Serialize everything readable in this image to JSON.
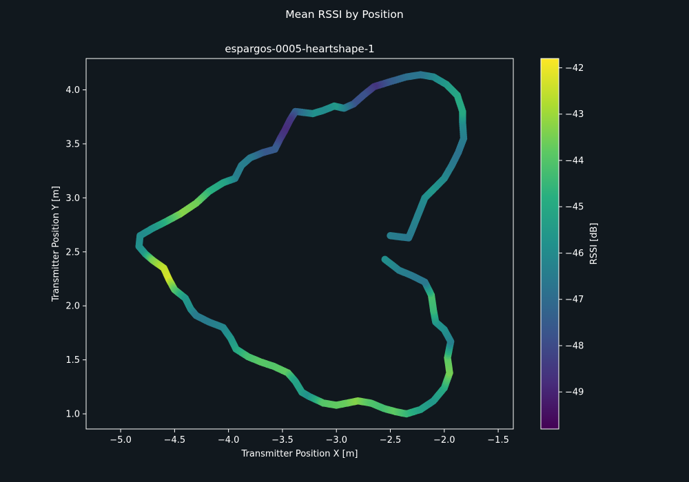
{
  "figure": {
    "title": "Mean RSSI by Position",
    "background": "#11181e"
  },
  "chart_data": {
    "type": "scatter",
    "subtitle": "espargos-0005-heartshape-1",
    "xlabel": "Transmitter Position X [m]",
    "ylabel": "Transmitter Position Y [m]",
    "xlim": [
      -5.32,
      -1.36
    ],
    "ylim": [
      0.86,
      4.29
    ],
    "xticks": [
      -5.0,
      -4.5,
      -4.0,
      -3.5,
      -3.0,
      -2.5,
      -2.0,
      -1.5
    ],
    "xtick_labels": [
      "−5.0",
      "−4.5",
      "−4.0",
      "−3.5",
      "−3.0",
      "−2.5",
      "−2.0",
      "−1.5"
    ],
    "yticks": [
      1.0,
      1.5,
      2.0,
      2.5,
      3.0,
      3.5,
      4.0
    ],
    "ytick_labels": [
      "1.0",
      "1.5",
      "2.0",
      "2.5",
      "3.0",
      "3.5",
      "4.0"
    ],
    "grid": false,
    "colormap": "viridis",
    "colorbar": {
      "label": "RSSI [dB]",
      "range": [
        -49.8,
        -41.8
      ],
      "ticks": [
        -42,
        -43,
        -44,
        -45,
        -46,
        -47,
        -48,
        -49
      ],
      "tick_labels": [
        "−42",
        "−43",
        "−44",
        "−45",
        "−46",
        "−47",
        "−48",
        "−49"
      ]
    },
    "points": [
      [
        -2.5,
        2.65,
        -46.4
      ],
      [
        -2.42,
        2.64,
        -46.5
      ],
      [
        -2.33,
        2.63,
        -46.6
      ],
      [
        -2.3,
        2.7,
        -46.5
      ],
      [
        -2.26,
        2.8,
        -46.3
      ],
      [
        -2.22,
        2.9,
        -46.3
      ],
      [
        -2.18,
        3.0,
        -46.0
      ],
      [
        -2.1,
        3.08,
        -45.6
      ],
      [
        -2.0,
        3.18,
        -46.0
      ],
      [
        -1.93,
        3.3,
        -46.5
      ],
      [
        -1.87,
        3.42,
        -46.8
      ],
      [
        -1.82,
        3.55,
        -46.5
      ],
      [
        -1.83,
        3.7,
        -46.0
      ],
      [
        -1.83,
        3.8,
        -45.0
      ],
      [
        -1.88,
        3.95,
        -45.0
      ],
      [
        -1.98,
        4.05,
        -45.4
      ],
      [
        -2.1,
        4.12,
        -46.0
      ],
      [
        -2.22,
        4.14,
        -46.7
      ],
      [
        -2.35,
        4.12,
        -46.8
      ],
      [
        -2.52,
        4.07,
        -47.5
      ],
      [
        -2.65,
        4.03,
        -48.6
      ],
      [
        -2.75,
        3.95,
        -47.8
      ],
      [
        -2.84,
        3.87,
        -47.8
      ],
      [
        -2.93,
        3.83,
        -46.5
      ],
      [
        -3.02,
        3.85,
        -45.5
      ],
      [
        -3.12,
        3.81,
        -46.0
      ],
      [
        -3.22,
        3.78,
        -45.8
      ],
      [
        -3.38,
        3.8,
        -47.2
      ],
      [
        -3.43,
        3.72,
        -48.5
      ],
      [
        -3.48,
        3.62,
        -48.8
      ],
      [
        -3.52,
        3.55,
        -48.5
      ],
      [
        -3.57,
        3.45,
        -47.5
      ],
      [
        -3.68,
        3.42,
        -47.6
      ],
      [
        -3.8,
        3.37,
        -46.6
      ],
      [
        -3.88,
        3.3,
        -46.4
      ],
      [
        -3.94,
        3.18,
        -46.4
      ],
      [
        -4.05,
        3.14,
        -45.2
      ],
      [
        -4.18,
        3.06,
        -44.8
      ],
      [
        -4.3,
        2.95,
        -43.6
      ],
      [
        -4.45,
        2.85,
        -43.3
      ],
      [
        -4.58,
        2.78,
        -44.5
      ],
      [
        -4.7,
        2.72,
        -45.6
      ],
      [
        -4.82,
        2.65,
        -46.0
      ],
      [
        -4.83,
        2.55,
        -45.9
      ],
      [
        -4.77,
        2.48,
        -45.6
      ],
      [
        -4.7,
        2.42,
        -43.5
      ],
      [
        -4.6,
        2.35,
        -42.6
      ],
      [
        -4.55,
        2.24,
        -42.3
      ],
      [
        -4.5,
        2.15,
        -43.8
      ],
      [
        -4.4,
        2.07,
        -45.5
      ],
      [
        -4.35,
        1.97,
        -45.8
      ],
      [
        -4.3,
        1.91,
        -46.5
      ],
      [
        -4.18,
        1.85,
        -46.5
      ],
      [
        -4.05,
        1.8,
        -46.2
      ],
      [
        -3.98,
        1.7,
        -45.7
      ],
      [
        -3.93,
        1.6,
        -45.2
      ],
      [
        -3.82,
        1.53,
        -44.3
      ],
      [
        -3.7,
        1.48,
        -43.9
      ],
      [
        -3.58,
        1.44,
        -44.0
      ],
      [
        -3.45,
        1.38,
        -43.8
      ],
      [
        -3.38,
        1.3,
        -45.2
      ],
      [
        -3.32,
        1.2,
        -45.3
      ],
      [
        -3.25,
        1.16,
        -45.8
      ],
      [
        -3.12,
        1.1,
        -44.0
      ],
      [
        -3.0,
        1.08,
        -43.8
      ],
      [
        -2.9,
        1.1,
        -43.7
      ],
      [
        -2.8,
        1.12,
        -43.3
      ],
      [
        -2.68,
        1.1,
        -44.0
      ],
      [
        -2.56,
        1.05,
        -44.3
      ],
      [
        -2.45,
        1.02,
        -43.8
      ],
      [
        -2.35,
        1.0,
        -44.4
      ],
      [
        -2.22,
        1.04,
        -45.2
      ],
      [
        -2.1,
        1.12,
        -45.6
      ],
      [
        -2.0,
        1.24,
        -45.0
      ],
      [
        -1.95,
        1.38,
        -43.5
      ],
      [
        -1.97,
        1.52,
        -43.8
      ],
      [
        -1.94,
        1.67,
        -46.4
      ],
      [
        -2.0,
        1.78,
        -45.9
      ],
      [
        -2.08,
        1.85,
        -45.7
      ],
      [
        -2.1,
        1.96,
        -44.5
      ],
      [
        -2.12,
        2.1,
        -44.2
      ],
      [
        -2.18,
        2.22,
        -46.6
      ],
      [
        -2.3,
        2.28,
        -46.6
      ],
      [
        -2.42,
        2.33,
        -46.4
      ],
      [
        -2.55,
        2.43,
        -45.9
      ]
    ]
  }
}
